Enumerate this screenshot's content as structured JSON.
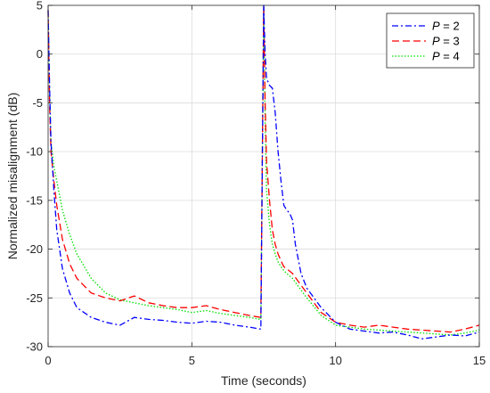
{
  "chart_data": {
    "type": "line",
    "title": "",
    "xlabel": "Time (seconds)",
    "ylabel": "Normalized misalignment (dB)",
    "xlim": [
      0,
      15
    ],
    "ylim": [
      -30,
      5
    ],
    "xticks": [
      0,
      5,
      10,
      15
    ],
    "yticks": [
      5,
      0,
      -5,
      -10,
      -15,
      -20,
      -25,
      -30
    ],
    "grid": true,
    "legend_position": "top-right",
    "series": [
      {
        "name": "P = 2",
        "name_var": "P",
        "name_rest": " = 2",
        "color": "#0000ff",
        "dash": "dash-dot",
        "x": [
          0,
          0.05,
          0.1,
          0.2,
          0.3,
          0.5,
          0.75,
          1,
          1.5,
          2,
          2.5,
          3,
          3.5,
          4,
          4.5,
          5,
          5.5,
          6,
          6.5,
          7,
          7.4,
          7.5,
          7.55,
          7.6,
          7.7,
          7.8,
          7.9,
          8,
          8.1,
          8.2,
          8.3,
          8.4,
          8.5,
          8.6,
          8.7,
          8.8,
          9,
          9.5,
          10,
          10.5,
          11,
          11.5,
          12,
          12.5,
          13,
          13.5,
          14,
          14.5,
          15
        ],
        "y": [
          4.5,
          -3,
          -9,
          -14,
          -18,
          -22,
          -24.5,
          -26,
          -27,
          -27.5,
          -27.8,
          -27,
          -27.2,
          -27.3,
          -27.5,
          -27.6,
          -27.4,
          -27.5,
          -27.8,
          -28,
          -28.2,
          5,
          0,
          -2.5,
          -3.2,
          -3.5,
          -6,
          -10,
          -13,
          -15.5,
          -16,
          -16.3,
          -17,
          -19.5,
          -21,
          -22.5,
          -24,
          -26,
          -27.5,
          -28.2,
          -28.4,
          -28.6,
          -28.5,
          -28.8,
          -29.2,
          -29,
          -28.8,
          -28.9,
          -28.5
        ]
      },
      {
        "name": "P = 3",
        "name_var": "P",
        "name_rest": " = 3",
        "color": "#ff0000",
        "dash": "dashed",
        "x": [
          0,
          0.05,
          0.1,
          0.2,
          0.3,
          0.5,
          0.75,
          1,
          1.5,
          2,
          2.5,
          3,
          3.5,
          4,
          4.5,
          5,
          5.5,
          6,
          6.5,
          7,
          7.4,
          7.5,
          7.55,
          7.6,
          7.7,
          7.8,
          7.9,
          8,
          8.1,
          8.2,
          8.3,
          8.5,
          8.75,
          9,
          9.5,
          10,
          10.5,
          11,
          11.5,
          12,
          12.5,
          13,
          13.5,
          14,
          14.5,
          15
        ],
        "y": [
          4.5,
          -5,
          -10,
          -13,
          -15.5,
          -19,
          -21.5,
          -23,
          -24.5,
          -25,
          -25.3,
          -24.8,
          -25.5,
          -25.8,
          -26,
          -26,
          -25.8,
          -26.2,
          -26.5,
          -26.8,
          -27,
          5,
          -5,
          -11,
          -15,
          -18,
          -19.5,
          -20.5,
          -21.2,
          -21.8,
          -22,
          -22.5,
          -23.5,
          -24.5,
          -26.5,
          -27.5,
          -27.8,
          -28,
          -27.8,
          -28,
          -28.2,
          -28.3,
          -28.4,
          -28.5,
          -28.2,
          -27.8
        ]
      },
      {
        "name": "P = 4",
        "name_var": "P",
        "name_rest": " = 4",
        "color": "#00e000",
        "dash": "dotted",
        "x": [
          0,
          0.05,
          0.1,
          0.2,
          0.3,
          0.5,
          0.75,
          1,
          1.5,
          2,
          2.5,
          3,
          3.5,
          4,
          4.5,
          5,
          5.5,
          6,
          6.5,
          7,
          7.4,
          7.5,
          7.55,
          7.6,
          7.7,
          7.8,
          7.9,
          8,
          8.1,
          8.2,
          8.3,
          8.5,
          8.75,
          9,
          9.5,
          10,
          10.5,
          11,
          11.5,
          12,
          12.5,
          13,
          13.5,
          14,
          14.5,
          15
        ],
        "y": [
          4.5,
          -4,
          -9,
          -11.5,
          -13,
          -16,
          -18.5,
          -20.5,
          -23,
          -24.5,
          -25.2,
          -25.5,
          -25.8,
          -26,
          -26.2,
          -26.5,
          -26.3,
          -26.6,
          -26.8,
          -27,
          -27.2,
          5,
          -7,
          -14,
          -17.5,
          -19.5,
          -20.5,
          -21.3,
          -21.8,
          -22.2,
          -22.5,
          -23,
          -24,
          -25,
          -26.8,
          -27.8,
          -28,
          -28.2,
          -28.3,
          -28.4,
          -28.5,
          -28.6,
          -28.7,
          -28.8,
          -28.6,
          -28.3
        ]
      }
    ]
  }
}
